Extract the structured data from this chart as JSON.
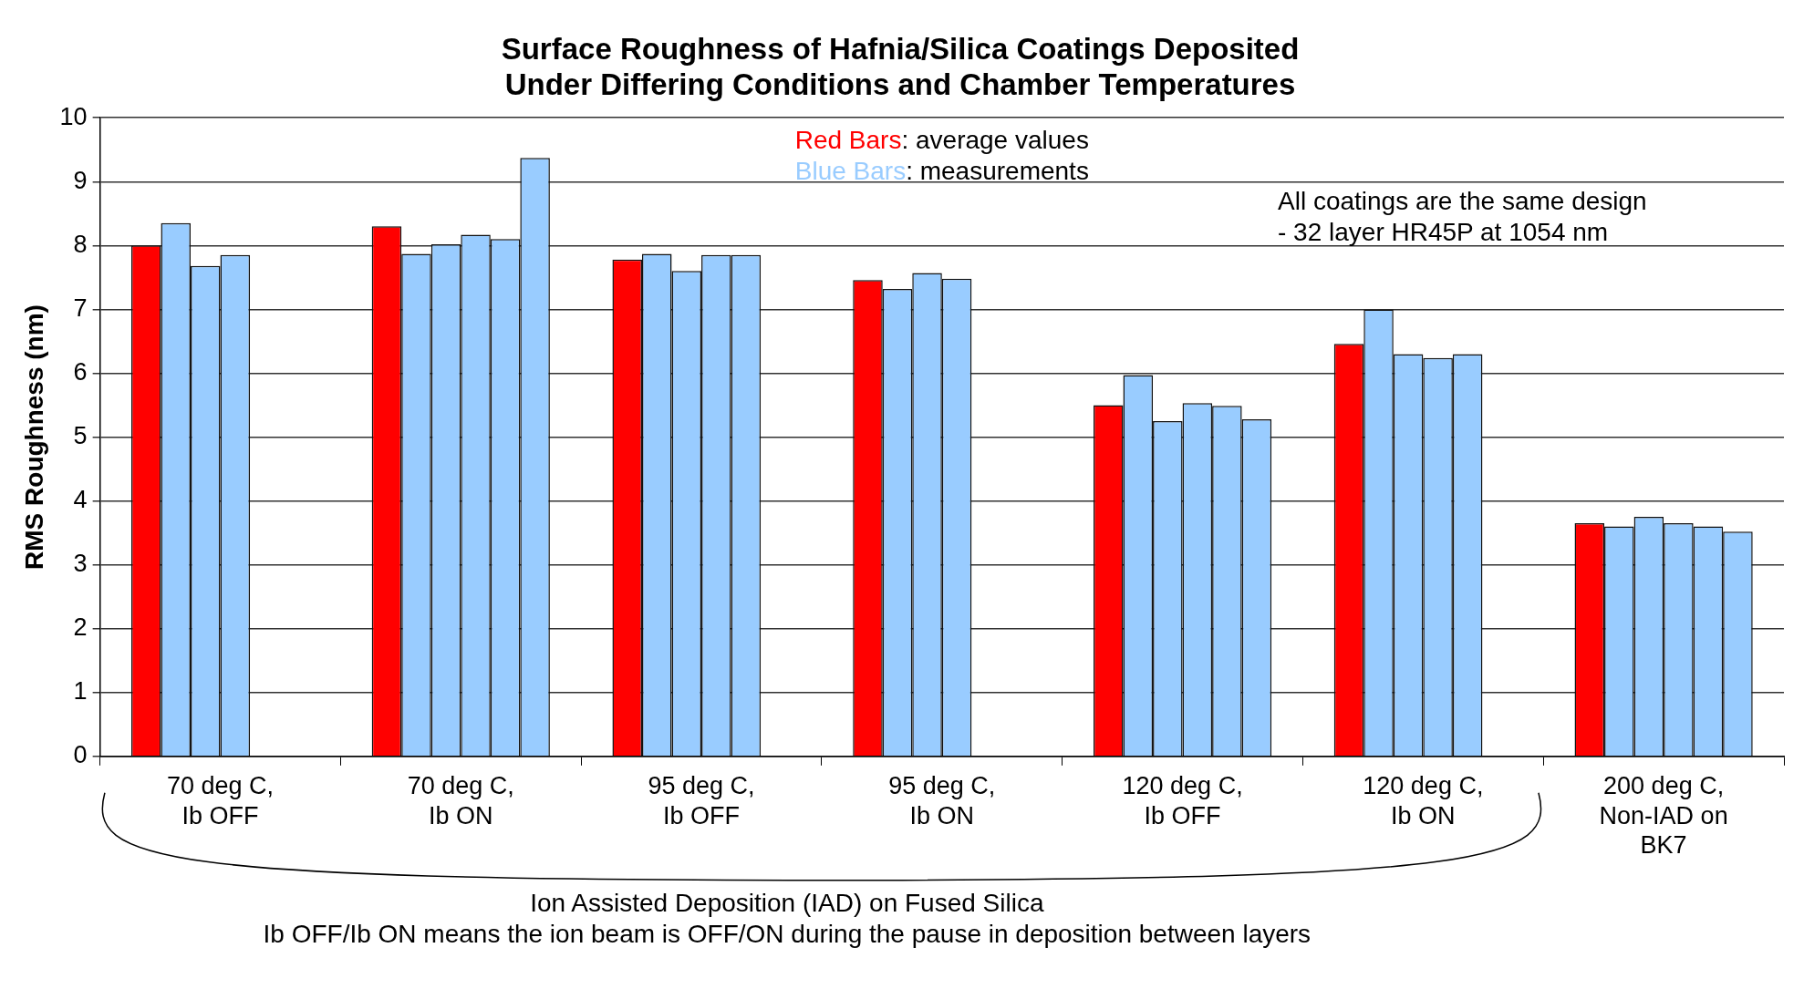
{
  "chart_data": {
    "type": "bar",
    "title": "Surface Roughness of Hafnia/Silica Coatings Deposited\nUnder Differing Conditions and Chamber Temperatures",
    "ylabel": "RMS Roughness (nm)",
    "categories": [
      "70 deg C,\nIb OFF",
      "70 deg C,\nIb ON",
      "95 deg C,\nIb OFF",
      "95 deg C,\nIb ON",
      "120 deg C,\nIb OFF",
      "120 deg C,\nIb ON",
      "200 deg C,\nNon-IAD on\nBK7"
    ],
    "series": [
      {
        "name": "Red Bars: average values",
        "color": "#ff0000",
        "values": [
          8.0,
          8.3,
          7.78,
          7.46,
          5.5,
          6.46,
          3.65
        ]
      },
      {
        "name": "Blue Bars: measurements",
        "color": "#99ccff",
        "values": [
          8.35,
          7.87,
          7.87,
          7.32,
          5.97,
          7.0,
          3.6
        ]
      },
      {
        "color": "#99ccff",
        "values": [
          7.68,
          8.02,
          7.6,
          7.57,
          5.25,
          6.3,
          3.75
        ]
      },
      {
        "color": "#99ccff",
        "values": [
          7.85,
          8.17,
          7.85,
          7.48,
          5.53,
          6.24,
          3.65
        ]
      },
      {
        "color": "#99ccff",
        "values": [
          null,
          8.1,
          7.85,
          null,
          5.49,
          6.3,
          3.6
        ]
      },
      {
        "color": "#99ccff",
        "values": [
          null,
          9.37,
          null,
          null,
          5.28,
          null,
          3.52
        ]
      }
    ],
    "ylim": [
      0,
      10
    ],
    "yticks": [
      0,
      1,
      2,
      3,
      4,
      5,
      6,
      7,
      8,
      9,
      10
    ],
    "grid": "y",
    "legend": "top",
    "annotations": [
      "All coatings are the same design\n- 32 layer HR45P at 1054 nm",
      "Ion Assisted Deposition (IAD) on Fused Silica\nIb OFF/Ib ON means the ion beam is OFF/ON during the pause in deposition between layers"
    ]
  }
}
